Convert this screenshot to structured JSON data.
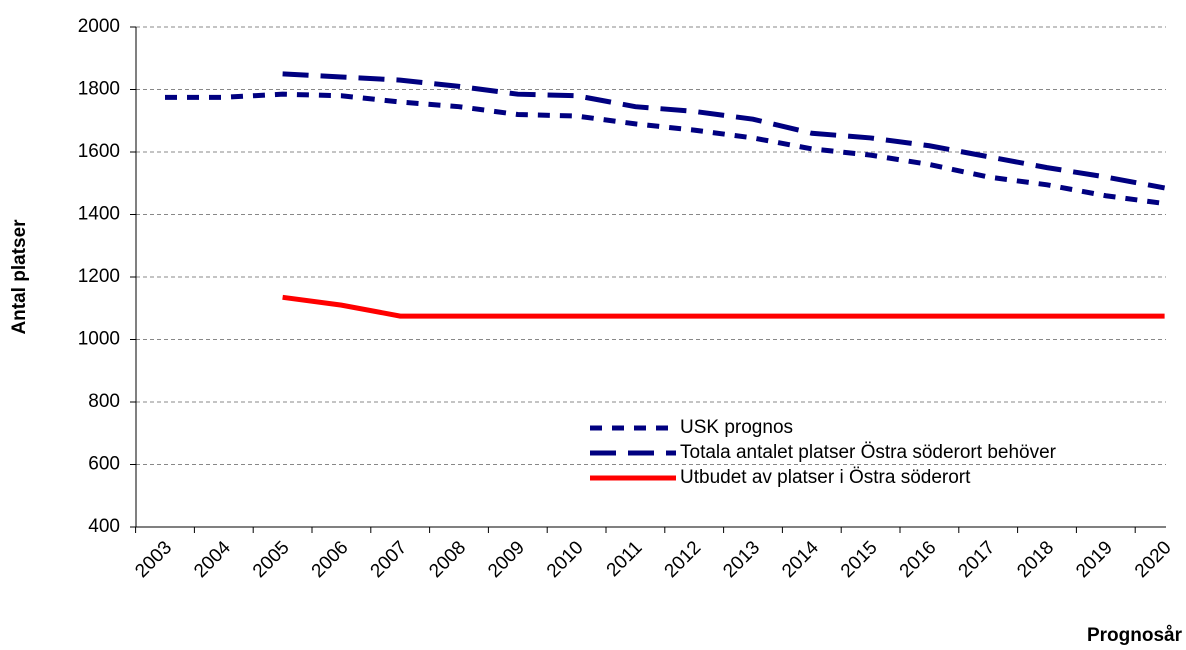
{
  "chart_data": {
    "type": "line",
    "y_label": "Antal platser",
    "x_label": "Prognosår",
    "categories": [
      "2003",
      "2004",
      "2005",
      "2006",
      "2007",
      "2008",
      "2009",
      "2010",
      "2011",
      "2012",
      "2013",
      "2014",
      "2015",
      "2016",
      "2017",
      "2018",
      "2019",
      "2020"
    ],
    "series": [
      {
        "name": "USK prognos",
        "color": "#000080",
        "style": "dotted",
        "values": [
          1775,
          1775,
          1785,
          1780,
          1760,
          1745,
          1720,
          1715,
          1690,
          1670,
          1645,
          1610,
          1590,
          1560,
          1520,
          1495,
          1460,
          1435
        ]
      },
      {
        "name": "Totala antalet platser Östra söderort behöver",
        "color": "#000080",
        "style": "dashed",
        "values": [
          null,
          null,
          1850,
          1840,
          1830,
          1810,
          1785,
          1780,
          1745,
          1730,
          1705,
          1660,
          1645,
          1620,
          1585,
          1550,
          1520,
          1485
        ]
      },
      {
        "name": "Utbudet av platser i Östra söderort",
        "color": "#ff0000",
        "style": "solid",
        "values": [
          null,
          null,
          1135,
          1110,
          1075,
          1075,
          1075,
          1075,
          1075,
          1075,
          1075,
          1075,
          1075,
          1075,
          1075,
          1075,
          1075,
          1075
        ]
      }
    ],
    "ylim": [
      400,
      2000
    ],
    "yticks": [
      400,
      600,
      800,
      1000,
      1200,
      1400,
      1600,
      1800,
      2000
    ],
    "grid": true
  }
}
